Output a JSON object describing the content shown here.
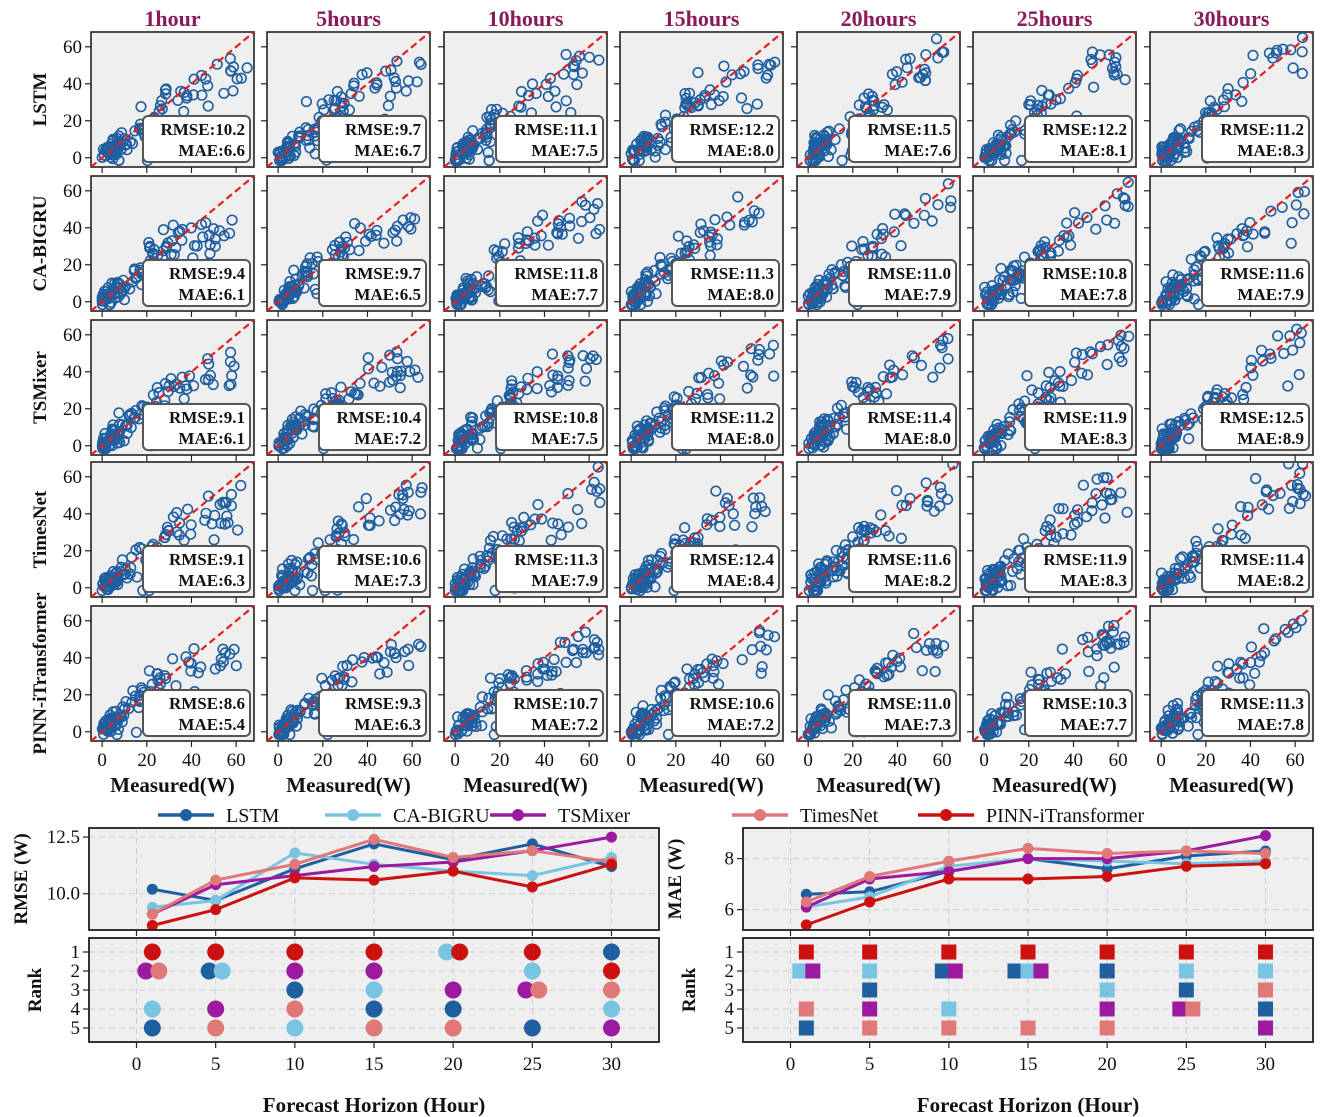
{
  "figure": {
    "columns": [
      "1hour",
      "5hours",
      "10hours",
      "15hours",
      "20hours",
      "25hours",
      "30hours"
    ],
    "rows": [
      "LSTM",
      "CA-BIGRU",
      "TSMixer",
      "TimesNet",
      "PINN-iTransformer"
    ],
    "scatter_xlabel": "Measured(W)",
    "horizon_xlabel": "Forecast Horizon (Hour)",
    "rmse_label": "RMSE",
    "mae_label": "MAE"
  },
  "colors": {
    "LSTM": "#1f5fa0",
    "CA-BIGRU": "#79c4e0",
    "TSMixer": "#9c1aa0",
    "TimesNet": "#e07878",
    "PINN-iTransformer": "#cc1111",
    "diagonal": "#e02020",
    "scatter_marker": "#1f5fa0"
  },
  "chart_data": [
    {
      "type": "scatter",
      "panels": "5 models x 7 horizons, predicted vs measured with y=x reference line",
      "xlabel": "Measured(W)",
      "xlim": [
        -5,
        68
      ],
      "ylim": [
        -5,
        68
      ],
      "xticks": [
        0,
        20,
        40,
        60
      ],
      "yticks": [
        0,
        20,
        40,
        60
      ],
      "annotations": {
        "LSTM": {
          "RMSE": [
            "10.2",
            "9.7",
            "11.1",
            "12.2",
            "11.5",
            "12.2",
            "11.2"
          ],
          "MAE": [
            "6.6",
            "6.7",
            "7.5",
            "8.0",
            "7.6",
            "8.1",
            "8.3"
          ]
        },
        "CA-BIGRU": {
          "RMSE": [
            "9.4",
            "9.7",
            "11.8",
            "11.3",
            "11.0",
            "10.8",
            "11.6"
          ],
          "MAE": [
            "6.1",
            "6.5",
            "7.7",
            "8.0",
            "7.9",
            "7.8",
            "7.9"
          ]
        },
        "TSMixer": {
          "RMSE": [
            "9.1",
            "10.4",
            "10.8",
            "11.2",
            "11.4",
            "11.9",
            "12.5"
          ],
          "MAE": [
            "6.1",
            "7.2",
            "7.5",
            "8.0",
            "8.0",
            "8.3",
            "8.9"
          ]
        },
        "TimesNet": {
          "RMSE": [
            "9.1",
            "10.6",
            "11.3",
            "12.4",
            "11.6",
            "11.9",
            "11.4"
          ],
          "MAE": [
            "6.3",
            "7.3",
            "7.9",
            "8.4",
            "8.2",
            "8.3",
            "8.2"
          ]
        },
        "PINN-iTransformer": {
          "RMSE": [
            "8.6",
            "9.3",
            "10.7",
            "10.6",
            "11.0",
            "10.3",
            "11.3"
          ],
          "MAE": [
            "5.4",
            "6.3",
            "7.2",
            "7.2",
            "7.3",
            "7.7",
            "7.8"
          ]
        }
      }
    },
    {
      "type": "line",
      "xlabel": "Forecast Horizon (Hour)",
      "ylabel": "RMSE (W)",
      "x": [
        1,
        5,
        10,
        15,
        20,
        25,
        30
      ],
      "xlim": [
        -3,
        33
      ],
      "ylim": [
        8.4,
        12.9
      ],
      "xticks": [
        0,
        5,
        10,
        15,
        20,
        25,
        30
      ],
      "yticks": [
        "10.0",
        "12.5"
      ],
      "series": [
        {
          "name": "LSTM",
          "values": [
            10.2,
            9.7,
            11.1,
            12.2,
            11.5,
            12.2,
            11.2
          ]
        },
        {
          "name": "CA-BIGRU",
          "values": [
            9.4,
            9.7,
            11.8,
            11.3,
            11.0,
            10.8,
            11.6
          ]
        },
        {
          "name": "TSMixer",
          "values": [
            9.1,
            10.4,
            10.8,
            11.2,
            11.4,
            11.9,
            12.5
          ]
        },
        {
          "name": "TimesNet",
          "values": [
            9.1,
            10.6,
            11.3,
            12.4,
            11.6,
            11.9,
            11.4
          ]
        },
        {
          "name": "PINN-iTransformer",
          "values": [
            8.6,
            9.3,
            10.7,
            10.6,
            11.0,
            10.3,
            11.3
          ]
        }
      ]
    },
    {
      "type": "scatter",
      "subtype": "rank",
      "ylabel": "Rank",
      "x": [
        1,
        5,
        10,
        15,
        20,
        25,
        30
      ],
      "yticks": [
        1,
        2,
        3,
        4,
        5
      ],
      "marker": "circle",
      "series": [
        {
          "name": "LSTM",
          "values": [
            5,
            2,
            3,
            4,
            4,
            5,
            1
          ]
        },
        {
          "name": "CA-BIGRU",
          "values": [
            4,
            2,
            5,
            3,
            1,
            2,
            4
          ]
        },
        {
          "name": "TSMixer",
          "values": [
            2,
            4,
            2,
            2,
            3,
            3,
            5
          ]
        },
        {
          "name": "TimesNet",
          "values": [
            2,
            5,
            4,
            5,
            5,
            3,
            3
          ]
        },
        {
          "name": "PINN-iTransformer",
          "values": [
            1,
            1,
            1,
            1,
            1,
            1,
            2
          ]
        }
      ]
    },
    {
      "type": "line",
      "xlabel": "Forecast Horizon (Hour)",
      "ylabel": "MAE (W)",
      "x": [
        1,
        5,
        10,
        15,
        20,
        25,
        30
      ],
      "xlim": [
        -3,
        33
      ],
      "ylim": [
        5.2,
        9.2
      ],
      "xticks": [
        0,
        5,
        10,
        15,
        20,
        25,
        30
      ],
      "yticks": [
        "6",
        "8"
      ],
      "series": [
        {
          "name": "LSTM",
          "values": [
            6.6,
            6.7,
            7.5,
            8.0,
            7.6,
            8.1,
            8.3
          ]
        },
        {
          "name": "CA-BIGRU",
          "values": [
            6.1,
            6.5,
            7.7,
            8.0,
            7.9,
            7.8,
            7.9
          ]
        },
        {
          "name": "TSMixer",
          "values": [
            6.1,
            7.2,
            7.5,
            8.0,
            8.0,
            8.3,
            8.9
          ]
        },
        {
          "name": "TimesNet",
          "values": [
            6.3,
            7.3,
            7.9,
            8.4,
            8.2,
            8.3,
            8.2
          ]
        },
        {
          "name": "PINN-iTransformer",
          "values": [
            5.4,
            6.3,
            7.2,
            7.2,
            7.3,
            7.7,
            7.8
          ]
        }
      ]
    },
    {
      "type": "scatter",
      "subtype": "rank",
      "ylabel": "Rank",
      "x": [
        1,
        5,
        10,
        15,
        20,
        25,
        30
      ],
      "yticks": [
        1,
        2,
        3,
        4,
        5
      ],
      "marker": "square",
      "series": [
        {
          "name": "LSTM",
          "values": [
            5,
            3,
            2,
            2,
            2,
            3,
            4
          ]
        },
        {
          "name": "CA-BIGRU",
          "values": [
            2,
            2,
            4,
            2,
            3,
            2,
            2
          ]
        },
        {
          "name": "TSMixer",
          "values": [
            2,
            4,
            2,
            2,
            4,
            4,
            5
          ]
        },
        {
          "name": "TimesNet",
          "values": [
            4,
            5,
            5,
            5,
            5,
            4,
            3
          ]
        },
        {
          "name": "PINN-iTransformer",
          "values": [
            1,
            1,
            1,
            1,
            1,
            1,
            1
          ]
        }
      ]
    }
  ]
}
